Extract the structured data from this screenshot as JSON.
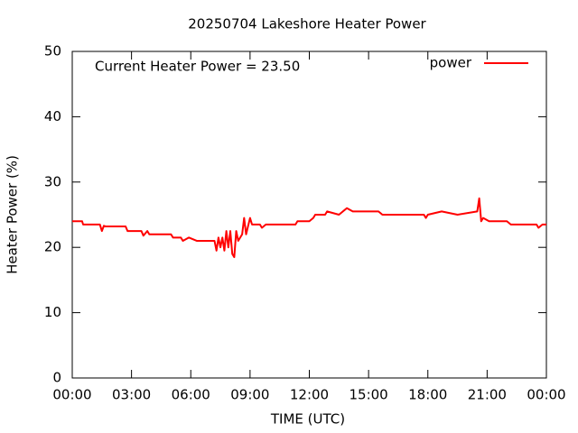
{
  "chart_data": {
    "type": "line",
    "title": "20250704 Lakeshore Heater Power",
    "annotation": "Current Heater Power = 23.50",
    "x_label": "TIME (UTC)",
    "y_label": "Heater Power (%)",
    "xlim": [
      0,
      24
    ],
    "xticks": [
      {
        "value": 0,
        "label": "00:00"
      },
      {
        "value": 3,
        "label": "03:00"
      },
      {
        "value": 6,
        "label": "06:00"
      },
      {
        "value": 9,
        "label": "09:00"
      },
      {
        "value": 12,
        "label": "12:00"
      },
      {
        "value": 15,
        "label": "15:00"
      },
      {
        "value": 18,
        "label": "18:00"
      },
      {
        "value": 21,
        "label": "21:00"
      },
      {
        "value": 24,
        "label": "00:00"
      }
    ],
    "ylim": [
      0,
      50
    ],
    "yticks": [
      0,
      10,
      20,
      30,
      40,
      50
    ],
    "grid": false,
    "legend": "top-right",
    "x": [
      0,
      0.5,
      0.55,
      1.4,
      1.5,
      1.6,
      1.7,
      2.7,
      2.8,
      3.5,
      3.6,
      3.8,
      3.9,
      5.0,
      5.1,
      5.5,
      5.6,
      5.9,
      6.3,
      7.2,
      7.3,
      7.4,
      7.5,
      7.6,
      7.7,
      7.8,
      7.9,
      8.0,
      8.1,
      8.2,
      8.3,
      8.4,
      8.6,
      8.7,
      8.8,
      9.0,
      9.1,
      9.5,
      9.6,
      9.8,
      11.3,
      11.4,
      12.0,
      12.2,
      12.3,
      12.8,
      12.9,
      13.5,
      13.9,
      14.2,
      15.5,
      15.7,
      17.0,
      17.8,
      17.9,
      18.0,
      18.7,
      19.5,
      20.5,
      20.6,
      20.7,
      20.8,
      21.1,
      22.0,
      22.2,
      23.5,
      23.6,
      23.8,
      24.0
    ],
    "series": [
      {
        "name": "power",
        "color": "#ff0000",
        "values": [
          24.0,
          24.0,
          23.5,
          23.5,
          22.5,
          23.3,
          23.2,
          23.2,
          22.5,
          22.5,
          21.8,
          22.5,
          22.0,
          22.0,
          21.5,
          21.5,
          21.0,
          21.5,
          21.0,
          21.0,
          19.5,
          21.5,
          20.0,
          21.5,
          19.5,
          22.5,
          20.0,
          22.5,
          19.0,
          18.5,
          22.5,
          21.0,
          22.0,
          24.5,
          22.0,
          24.5,
          23.5,
          23.5,
          23.0,
          23.5,
          23.5,
          24.0,
          24.0,
          24.5,
          25.0,
          25.0,
          25.5,
          25.0,
          26.0,
          25.5,
          25.5,
          25.0,
          25.0,
          25.0,
          24.5,
          25.0,
          25.5,
          25.0,
          25.5,
          27.5,
          24.0,
          24.5,
          24.0,
          24.0,
          23.5,
          23.5,
          23.0,
          23.5,
          23.5
        ]
      }
    ]
  }
}
